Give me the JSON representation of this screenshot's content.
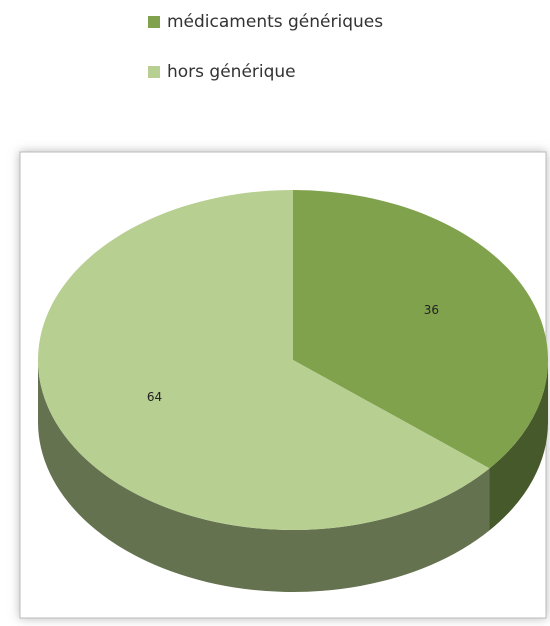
{
  "chart_data": {
    "type": "pie",
    "categories": [
      "médicaments génériques",
      "hors générique"
    ],
    "values": [
      36,
      64
    ],
    "colors": [
      "#80a24c",
      "#b7cf91"
    ],
    "legend": "top"
  }
}
